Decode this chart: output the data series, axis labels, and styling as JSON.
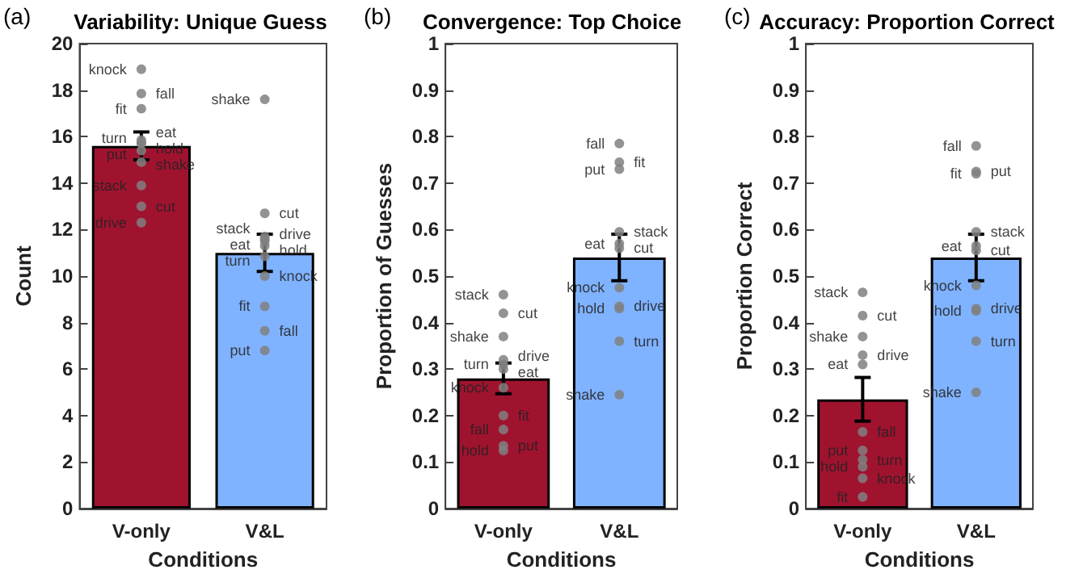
{
  "chart_data": [
    {
      "type": "bar",
      "title": "Variability: Unique Guess",
      "annotations": [
        "(a)"
      ],
      "xlabel": "Conditions",
      "ylabel": "Count",
      "categories": [
        "V-only",
        "V&L"
      ],
      "ylim": [
        0,
        20
      ],
      "yticks": [
        0,
        2,
        4,
        6,
        8,
        10,
        12,
        14,
        16,
        18,
        20
      ],
      "series": [
        {
          "values": [
            15.6,
            11.0
          ],
          "colors": [
            "#a0132f",
            "#80b3ff"
          ],
          "errors": [
            0.6,
            0.8
          ]
        },
        {
          "type": "scatter",
          "color": "#808080",
          "x": [
            "V-only",
            "V-only",
            "V-only",
            "V-only",
            "V-only",
            "V-only",
            "V-only",
            "V-only",
            "V-only",
            "V-only",
            "V-only"
          ],
          "values": [
            18.9,
            17.85,
            17.2,
            15.85,
            15.75,
            15.4,
            15.7,
            14.9,
            13.9,
            13.0,
            12.3
          ],
          "value_labels": [
            "knock",
            "fall",
            "fit",
            "eat",
            "turn",
            "put",
            "hold",
            "shake",
            "stack",
            "cut",
            "drive"
          ]
        },
        {
          "type": "scatter",
          "color": "#808080",
          "x": [
            "V&L",
            "V&L",
            "V&L",
            "V&L",
            "V&L",
            "V&L",
            "V&L",
            "V&L",
            "V&L",
            "V&L",
            "V&L"
          ],
          "values": [
            17.6,
            12.7,
            11.7,
            11.6,
            11.5,
            11.3,
            10.85,
            10.0,
            8.7,
            7.65,
            6.8
          ],
          "value_labels": [
            "shake",
            "cut",
            "stack",
            "drive",
            "eat",
            "hold",
            "turn",
            "knock",
            "fit",
            "fall",
            "put"
          ]
        }
      ]
    },
    {
      "type": "bar",
      "title": "Convergence: Top Choice",
      "annotations": [
        "(b)"
      ],
      "xlabel": "Conditions",
      "ylabel": "Proportion of Guesses",
      "categories": [
        "V-only",
        "V&L"
      ],
      "ylim": [
        0,
        1
      ],
      "yticks": [
        0,
        0.1,
        0.2,
        0.3,
        0.4,
        0.5,
        0.6,
        0.7,
        0.8,
        0.9,
        1
      ],
      "series": [
        {
          "values": [
            0.28,
            0.54
          ],
          "colors": [
            "#a0132f",
            "#80b3ff"
          ],
          "errors": [
            0.033,
            0.05
          ]
        },
        {
          "type": "scatter",
          "color": "#808080",
          "x": [
            "V-only",
            "V-only",
            "V-only",
            "V-only",
            "V-only",
            "V-only",
            "V-only",
            "V-only",
            "V-only",
            "V-only",
            "V-only"
          ],
          "values": [
            0.46,
            0.42,
            0.37,
            0.32,
            0.3,
            0.31,
            0.26,
            0.2,
            0.17,
            0.135,
            0.125
          ],
          "value_labels": [
            "stack",
            "cut",
            "shake",
            "drive",
            "eat",
            "turn",
            "knock",
            "fit",
            "fall",
            "put",
            "hold"
          ]
        },
        {
          "type": "scatter",
          "color": "#808080",
          "x": [
            "V&L",
            "V&L",
            "V&L",
            "V&L",
            "V&L",
            "V&L",
            "V&L",
            "V&L",
            "V&L",
            "V&L",
            "V&L"
          ],
          "values": [
            0.785,
            0.745,
            0.73,
            0.595,
            0.57,
            0.56,
            0.475,
            0.435,
            0.43,
            0.36,
            0.245
          ],
          "value_labels": [
            "fall",
            "fit",
            "put",
            "stack",
            "eat",
            "cut",
            "knock",
            "drive",
            "hold",
            "turn",
            "shake"
          ]
        }
      ]
    },
    {
      "type": "bar",
      "title": "Accuracy: Proportion Correct",
      "annotations": [
        "(c)"
      ],
      "xlabel": "Conditions",
      "ylabel": "Proportion Correct",
      "categories": [
        "V-only",
        "V&L"
      ],
      "ylim": [
        0,
        1
      ],
      "yticks": [
        0,
        0.1,
        0.2,
        0.3,
        0.4,
        0.5,
        0.6,
        0.7,
        0.8,
        0.9,
        1
      ],
      "series": [
        {
          "values": [
            0.235,
            0.54
          ],
          "colors": [
            "#a0132f",
            "#80b3ff"
          ],
          "errors": [
            0.047,
            0.05
          ]
        },
        {
          "type": "scatter",
          "color": "#808080",
          "x": [
            "V-only",
            "V-only",
            "V-only",
            "V-only",
            "V-only",
            "V-only",
            "V-only",
            "V-only",
            "V-only",
            "V-only",
            "V-only"
          ],
          "values": [
            0.465,
            0.415,
            0.37,
            0.31,
            0.33,
            0.165,
            0.125,
            0.105,
            0.09,
            0.065,
            0.025
          ],
          "value_labels": [
            "stack",
            "cut",
            "shake",
            "eat",
            "drive",
            "fall",
            "put",
            "turn",
            "hold",
            "knock",
            "fit"
          ]
        },
        {
          "type": "scatter",
          "color": "#808080",
          "x": [
            "V&L",
            "V&L",
            "V&L",
            "V&L",
            "V&L",
            "V&L",
            "V&L",
            "V&L",
            "V&L",
            "V&L",
            "V&L"
          ],
          "values": [
            0.78,
            0.725,
            0.72,
            0.595,
            0.565,
            0.555,
            0.48,
            0.43,
            0.425,
            0.36,
            0.25
          ],
          "value_labels": [
            "fall",
            "put",
            "fit",
            "stack",
            "eat",
            "cut",
            "knock",
            "drive",
            "hold",
            "turn",
            "shake"
          ]
        }
      ]
    }
  ]
}
